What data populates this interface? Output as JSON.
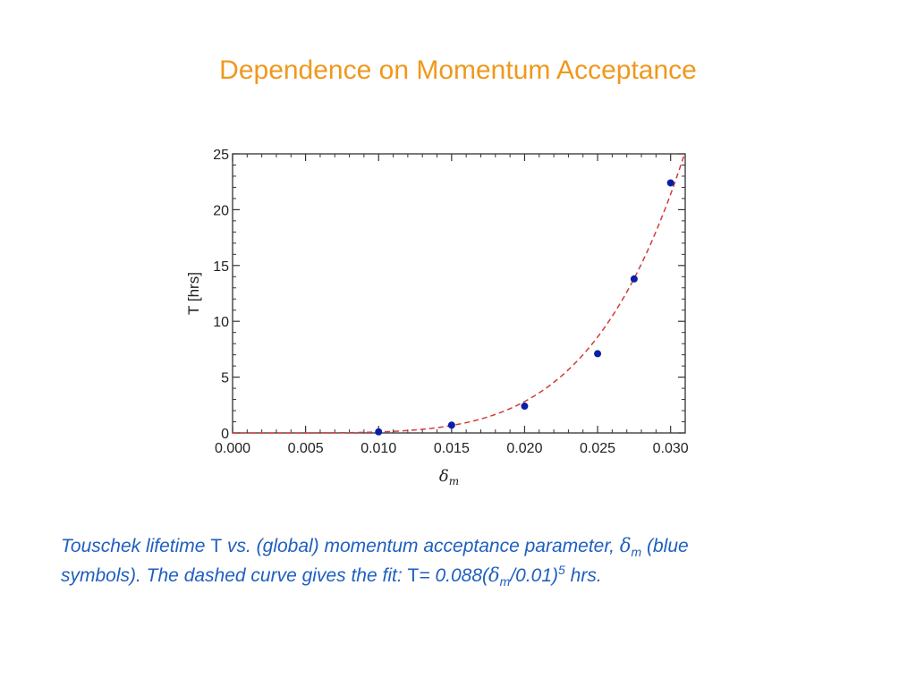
{
  "slide": {
    "title": "Dependence on Momentum Acceptance"
  },
  "caption": {
    "line1_a": "Touschek lifetime ",
    "tau_symbol": "T",
    "line1_b": " vs. (global) momentum acceptance parameter, ",
    "delta_symbol": "δ",
    "delta_sub": "m",
    "line1_c": " (blue",
    "line2_a": "symbols). The dashed curve gives the fit: ",
    "tau_symbol_2": "T",
    "line2_b": "= 0.088(",
    "delta_symbol_2": "δ",
    "delta_sub_2": "m",
    "line2_c": "/0.01)",
    "power": "5",
    "line2_d": " hrs."
  },
  "chart_data": {
    "type": "scatter",
    "xlabel": "δ",
    "xlabel_sub": "m",
    "ylabel": "T [hrs]",
    "xlim": [
      0.0,
      0.031
    ],
    "ylim": [
      0,
      25
    ],
    "xticks": [
      0.0,
      0.005,
      0.01,
      0.015,
      0.02,
      0.025,
      0.03
    ],
    "xtick_labels": [
      "0.000",
      "0.005",
      "0.010",
      "0.015",
      "0.020",
      "0.025",
      "0.030"
    ],
    "yticks": [
      0,
      5,
      10,
      15,
      20,
      25
    ],
    "ytick_labels": [
      "0",
      "5",
      "10",
      "15",
      "20",
      "25"
    ],
    "series": [
      {
        "x": [
          0.01,
          0.015,
          0.02,
          0.025,
          0.0275,
          0.03
        ],
        "y": [
          0.1,
          0.7,
          2.4,
          7.1,
          13.8,
          22.4
        ],
        "color": "#0a1fa8",
        "marker": "circle"
      }
    ],
    "fit": {
      "formula": "0.088*(x/0.01)^5",
      "coefficient": 0.088,
      "exponent": 5,
      "scale": 0.01,
      "color": "#d23a3a",
      "style": "dashed"
    },
    "grid": false,
    "legend": "none"
  }
}
